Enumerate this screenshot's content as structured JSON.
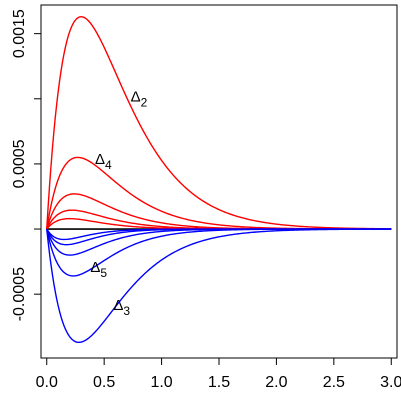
{
  "chart_data": {
    "type": "line",
    "title": "",
    "xlabel": "",
    "ylabel": "",
    "xlim": [
      -0.05,
      3.05
    ],
    "ylim": [
      -0.00099,
      0.00172
    ],
    "x_ticks": [
      0.0,
      0.5,
      1.0,
      1.5,
      2.0,
      2.5,
      3.0
    ],
    "x_tick_labels": [
      "0.0",
      "0.5",
      "1.0",
      "1.5",
      "2.0",
      "2.5",
      "3.0"
    ],
    "y_ticks": [
      -0.0005,
      0.0,
      0.0005,
      0.001,
      0.0015
    ],
    "y_tick_labels": [
      "-0.0005",
      "",
      "0.0005",
      "",
      "0.0015"
    ],
    "grid": false,
    "legend": "none",
    "baseline": {
      "y": 0,
      "color": "#000000"
    },
    "series": [
      {
        "color": "#ff0000",
        "peak_x": 0.3,
        "peak_y": 0.00163
      },
      {
        "color": "#ff0000",
        "peak_x": 0.27,
        "peak_y": 0.00055
      },
      {
        "color": "#ff0000",
        "peak_x": 0.24,
        "peak_y": 0.00027
      },
      {
        "color": "#ff0000",
        "peak_x": 0.22,
        "peak_y": 0.000145
      },
      {
        "color": "#ff0000",
        "peak_x": 0.2,
        "peak_y": 8e-05
      },
      {
        "color": "#0000ff",
        "peak_x": 0.28,
        "peak_y": -0.00087
      },
      {
        "color": "#0000ff",
        "peak_x": 0.23,
        "peak_y": -0.00036
      },
      {
        "color": "#0000ff",
        "peak_x": 0.2,
        "peak_y": -0.0002
      },
      {
        "color": "#0000ff",
        "peak_x": 0.17,
        "peak_y": -0.00012
      },
      {
        "color": "#0000ff",
        "peak_x": 0.15,
        "peak_y": -8e-05
      }
    ],
    "annotations": [
      {
        "symbol": "Δ",
        "sub": "2",
        "x": 0.73,
        "y": 0.00098
      },
      {
        "symbol": "Δ",
        "sub": "4",
        "x": 0.42,
        "y": 0.0005
      },
      {
        "symbol": "Δ",
        "sub": "5",
        "x": 0.38,
        "y": -0.00033
      },
      {
        "symbol": "Δ",
        "sub": "3",
        "x": 0.58,
        "y": -0.00062
      }
    ]
  }
}
